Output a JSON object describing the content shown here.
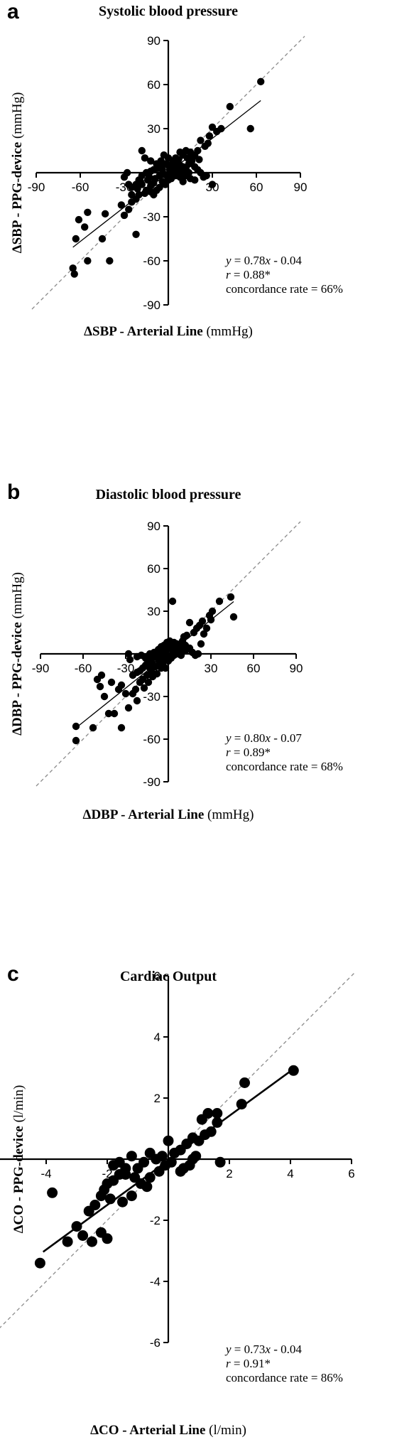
{
  "chart_data": [
    {
      "type": "scatter",
      "panel_label": "a",
      "title": "Systolic blood pressure",
      "xlabel_bold": "ΔSBP - Arterial Line",
      "xlabel_unit": " (mmHg)",
      "ylabel_bold": "ΔSBP - PPG-device",
      "ylabel_unit": " (mmHg)",
      "xlim": [
        -90,
        90
      ],
      "ylim": [
        -90,
        90
      ],
      "xticks": [
        -90,
        -60,
        -30,
        30,
        60,
        90
      ],
      "yticks": [
        90,
        60,
        30,
        -30,
        -60,
        -90
      ],
      "xtick_labels": [
        "-90",
        "-60",
        "-30",
        "30",
        "60",
        "90"
      ],
      "ytick_labels": [
        "90",
        "60",
        "30",
        "-30",
        "-60",
        "-90"
      ],
      "grid": false,
      "identity_line": {
        "from": [
          -90,
          -90
        ],
        "to": [
          90,
          90
        ],
        "style": "dashed"
      },
      "regression_line": {
        "slope": 0.78,
        "intercept": -0.04,
        "x_range": [
          -65,
          63
        ]
      },
      "stats": {
        "eq_var": "y",
        "eq_rest": " = 0.78",
        "eq_var2": "x",
        "eq_tail": " - 0.04",
        "r_var": "r",
        "r_rest": " = 0.88*",
        "concordance": "concordance rate = 66%"
      },
      "points": [
        [
          63,
          62
        ],
        [
          42,
          45
        ],
        [
          56,
          30
        ],
        [
          36,
          30
        ],
        [
          33,
          28
        ],
        [
          30,
          31
        ],
        [
          28,
          25
        ],
        [
          22,
          22
        ],
        [
          25,
          18
        ],
        [
          27,
          20
        ],
        [
          20,
          15
        ],
        [
          18,
          12
        ],
        [
          15,
          14
        ],
        [
          12,
          15
        ],
        [
          10,
          12
        ],
        [
          8,
          14
        ],
        [
          5,
          10
        ],
        [
          3,
          8
        ],
        [
          0,
          5
        ],
        [
          -2,
          6
        ],
        [
          -5,
          4
        ],
        [
          -8,
          3
        ],
        [
          -10,
          2
        ],
        [
          -12,
          1
        ],
        [
          -15,
          0
        ],
        [
          -18,
          -2
        ],
        [
          -20,
          -5
        ],
        [
          -22,
          -8
        ],
        [
          -25,
          -10
        ],
        [
          -28,
          0
        ],
        [
          -18,
          15
        ],
        [
          -16,
          10
        ],
        [
          -12,
          8
        ],
        [
          -8,
          6
        ],
        [
          -5,
          8
        ],
        [
          -3,
          12
        ],
        [
          0,
          10
        ],
        [
          2,
          3
        ],
        [
          4,
          1
        ],
        [
          6,
          2
        ],
        [
          8,
          5
        ],
        [
          10,
          4
        ],
        [
          12,
          3
        ],
        [
          14,
          6
        ],
        [
          16,
          8
        ],
        [
          18,
          4
        ],
        [
          20,
          2
        ],
        [
          22,
          0
        ],
        [
          24,
          -3
        ],
        [
          26,
          -2
        ],
        [
          30,
          -8
        ],
        [
          18,
          -5
        ],
        [
          15,
          -4
        ],
        [
          12,
          -2
        ],
        [
          10,
          -6
        ],
        [
          8,
          -3
        ],
        [
          5,
          -2
        ],
        [
          2,
          -4
        ],
        [
          0,
          -5
        ],
        [
          -2,
          -8
        ],
        [
          -4,
          -6
        ],
        [
          -6,
          -10
        ],
        [
          -8,
          -12
        ],
        [
          -10,
          -7
        ],
        [
          -12,
          -9
        ],
        [
          -14,
          -5
        ],
        [
          -16,
          -14
        ],
        [
          -20,
          -15
        ],
        [
          -22,
          -18
        ],
        [
          -25,
          -20
        ],
        [
          -27,
          -25
        ],
        [
          -30,
          -29
        ],
        [
          -32,
          -22
        ],
        [
          -18,
          -8
        ],
        [
          -15,
          -12
        ],
        [
          -12,
          -13
        ],
        [
          -10,
          -15
        ],
        [
          -6,
          -2
        ],
        [
          -3,
          -1
        ],
        [
          1,
          0
        ],
        [
          3,
          -1
        ],
        [
          6,
          -1
        ],
        [
          9,
          0
        ],
        [
          11,
          1
        ],
        [
          14,
          0
        ],
        [
          -22,
          -42
        ],
        [
          -43,
          -28
        ],
        [
          -55,
          -27
        ],
        [
          -57,
          -37
        ],
        [
          -61,
          -32
        ],
        [
          -63,
          -45
        ],
        [
          -45,
          -45
        ],
        [
          -55,
          -60
        ],
        [
          -40,
          -60
        ],
        [
          -65,
          -65
        ],
        [
          -64,
          -69
        ],
        [
          -25,
          -15
        ],
        [
          -27,
          -8
        ],
        [
          -30,
          -3
        ],
        [
          -21,
          -11
        ],
        [
          -19,
          -6
        ],
        [
          -7,
          3
        ],
        [
          -4,
          2
        ],
        [
          4,
          6
        ],
        [
          7,
          9
        ],
        [
          13,
          10
        ],
        [
          17,
          11
        ],
        [
          21,
          9
        ],
        [
          -1,
          -2
        ],
        [
          1,
          2
        ],
        [
          -13,
          -3
        ],
        [
          -9,
          -4
        ]
      ]
    },
    {
      "type": "scatter",
      "panel_label": "b",
      "title": "Diastolic blood pressure",
      "xlabel_bold": "ΔDBP - Arterial Line",
      "xlabel_unit": " (mmHg)",
      "ylabel_bold": "ΔDBP - PPG-device",
      "ylabel_unit": " (mmHg)",
      "xlim": [
        -90,
        90
      ],
      "ylim": [
        -90,
        90
      ],
      "xticks": [
        -90,
        -60,
        -30,
        30,
        60,
        90
      ],
      "yticks": [
        90,
        60,
        30,
        -30,
        -60,
        -90
      ],
      "xtick_labels": [
        "-90",
        "-60",
        "-30",
        "30",
        "60",
        "90"
      ],
      "ytick_labels": [
        "90",
        "60",
        "30",
        "-30",
        "-60",
        "-90"
      ],
      "grid": false,
      "identity_line": {
        "from": [
          -90,
          -90
        ],
        "to": [
          90,
          90
        ],
        "style": "dashed"
      },
      "regression_line": {
        "slope": 0.8,
        "intercept": -0.07,
        "x_range": [
          -65,
          46
        ]
      },
      "stats": {
        "eq_var": "y",
        "eq_rest": " = 0.80",
        "eq_var2": "x",
        "eq_tail": " - 0.07",
        "r_var": "r",
        "r_rest": " = 0.89*",
        "concordance": "concordance rate = 68%"
      },
      "points": [
        [
          44,
          40
        ],
        [
          46,
          26
        ],
        [
          36,
          37
        ],
        [
          31,
          30
        ],
        [
          29,
          27
        ],
        [
          24,
          23
        ],
        [
          22,
          20
        ],
        [
          20,
          18
        ],
        [
          18,
          15
        ],
        [
          15,
          22
        ],
        [
          13,
          13
        ],
        [
          11,
          12
        ],
        [
          10,
          9
        ],
        [
          8,
          6
        ],
        [
          6,
          7
        ],
        [
          4,
          8
        ],
        [
          3,
          37
        ],
        [
          2,
          5
        ],
        [
          0,
          4
        ],
        [
          -2,
          3
        ],
        [
          -4,
          2
        ],
        [
          -6,
          1
        ],
        [
          -8,
          0
        ],
        [
          -10,
          -2
        ],
        [
          -12,
          -4
        ],
        [
          -14,
          -6
        ],
        [
          -16,
          -8
        ],
        [
          -18,
          -10
        ],
        [
          -20,
          -12
        ],
        [
          -22,
          -13
        ],
        [
          -25,
          -15
        ],
        [
          -27,
          -4
        ],
        [
          -28,
          0
        ],
        [
          -22,
          -2
        ],
        [
          -19,
          -1
        ],
        [
          -16,
          -3
        ],
        [
          -13,
          0
        ],
        [
          -10,
          1
        ],
        [
          -7,
          3
        ],
        [
          -5,
          5
        ],
        [
          -3,
          6
        ],
        [
          -1,
          8
        ],
        [
          1,
          9
        ],
        [
          3,
          2
        ],
        [
          5,
          1
        ],
        [
          7,
          0
        ],
        [
          9,
          -1
        ],
        [
          11,
          2
        ],
        [
          13,
          3
        ],
        [
          15,
          4
        ],
        [
          17,
          1
        ],
        [
          19,
          -1
        ],
        [
          21,
          0
        ],
        [
          23,
          7
        ],
        [
          25,
          14
        ],
        [
          27,
          18
        ],
        [
          30,
          24
        ],
        [
          -30,
          -28
        ],
        [
          -33,
          -22
        ],
        [
          -18,
          -18
        ],
        [
          -15,
          -15
        ],
        [
          -12,
          -12
        ],
        [
          -9,
          -9
        ],
        [
          -6,
          -6
        ],
        [
          -3,
          -3
        ],
        [
          -1,
          -1
        ],
        [
          1,
          -2
        ],
        [
          -5,
          -10
        ],
        [
          -8,
          -14
        ],
        [
          -11,
          -16
        ],
        [
          -14,
          -20
        ],
        [
          -17,
          -24
        ],
        [
          -20,
          -20
        ],
        [
          -23,
          -25
        ],
        [
          -25,
          -28
        ],
        [
          -35,
          -25
        ],
        [
          -38,
          -42
        ],
        [
          -42,
          -42
        ],
        [
          -45,
          -30
        ],
        [
          -40,
          -20
        ],
        [
          -48,
          -23
        ],
        [
          -50,
          -18
        ],
        [
          -53,
          -52
        ],
        [
          -47,
          -15
        ],
        [
          -33,
          -52
        ],
        [
          -22,
          -33
        ],
        [
          -28,
          -38
        ],
        [
          -65,
          -51
        ],
        [
          -65,
          -61
        ],
        [
          -2,
          -10
        ],
        [
          -4,
          -7
        ],
        [
          0,
          -5
        ],
        [
          2,
          -3
        ],
        [
          4,
          -1
        ],
        [
          6,
          3
        ],
        [
          8,
          2
        ],
        [
          10,
          4
        ],
        [
          12,
          6
        ],
        [
          -7,
          -4
        ],
        [
          -11,
          -7
        ],
        [
          -13,
          -10
        ],
        [
          -9,
          -2
        ],
        [
          -6,
          -1
        ]
      ]
    },
    {
      "type": "scatter",
      "panel_label": "c",
      "title": "Cardiac Output",
      "xlabel_bold": "ΔCO - Arterial Line",
      "xlabel_unit": " (l/min)",
      "ylabel_bold": "ΔCO - PPG-device",
      "ylabel_unit": " (l/min)",
      "xlim": [
        -6,
        6
      ],
      "ylim": [
        -6,
        6
      ],
      "xticks": [
        -6,
        -4,
        -2,
        2,
        4,
        6
      ],
      "yticks": [
        6,
        4,
        2,
        -2,
        -4,
        -6
      ],
      "xtick_labels": [
        "-6",
        "-4",
        "-2",
        "2",
        "4",
        "6"
      ],
      "ytick_labels": [
        "6",
        "4",
        "2",
        "-2",
        "-4",
        "-6"
      ],
      "grid": false,
      "identity_line": {
        "from": [
          -6,
          -6
        ],
        "to": [
          6,
          6
        ],
        "style": "dashed"
      },
      "regression_line": {
        "slope": 0.73,
        "intercept": -0.04,
        "x_range": [
          -4.1,
          4.1
        ]
      },
      "stats": {
        "eq_var": "y",
        "eq_rest": " = 0.73",
        "eq_var2": "x",
        "eq_tail": " - 0.04",
        "r_var": "r",
        "r_rest": " = 0.91*",
        "concordance": "concordance rate = 86%"
      },
      "points": [
        [
          4.1,
          2.9
        ],
        [
          2.5,
          2.5
        ],
        [
          2.4,
          1.8
        ],
        [
          1.6,
          1.5
        ],
        [
          1.3,
          1.5
        ],
        [
          1.1,
          1.3
        ],
        [
          1.7,
          -0.1
        ],
        [
          1.2,
          0.8
        ],
        [
          1.0,
          0.6
        ],
        [
          0.8,
          0.7
        ],
        [
          0.6,
          0.5
        ],
        [
          0.4,
          0.3
        ],
        [
          0.2,
          0.2
        ],
        [
          0.0,
          0.6
        ],
        [
          -0.2,
          0.1
        ],
        [
          -0.4,
          0.0
        ],
        [
          -0.6,
          0.2
        ],
        [
          -0.8,
          -0.1
        ],
        [
          -1.0,
          -0.3
        ],
        [
          -1.2,
          0.1
        ],
        [
          -1.4,
          -0.3
        ],
        [
          -1.6,
          -0.5
        ],
        [
          -1.8,
          -0.7
        ],
        [
          -2.0,
          -0.8
        ],
        [
          -2.2,
          -1.2
        ],
        [
          -2.4,
          -1.5
        ],
        [
          -2.6,
          -1.7
        ],
        [
          -2.8,
          -2.5
        ],
        [
          -3.0,
          -2.2
        ],
        [
          -3.3,
          -2.7
        ],
        [
          -2.0,
          -2.6
        ],
        [
          -2.2,
          -2.4
        ],
        [
          -2.5,
          -2.7
        ],
        [
          -3.8,
          -1.1
        ],
        [
          -4.2,
          -3.4
        ],
        [
          -1.5,
          -1.4
        ],
        [
          -1.2,
          -1.2
        ],
        [
          -0.9,
          -0.8
        ],
        [
          -0.6,
          -0.6
        ],
        [
          -0.3,
          -0.4
        ],
        [
          0.1,
          -0.1
        ],
        [
          0.4,
          -0.4
        ],
        [
          0.7,
          -0.2
        ],
        [
          0.9,
          0.1
        ],
        [
          1.4,
          0.9
        ],
        [
          1.6,
          1.2
        ],
        [
          -1.8,
          -0.2
        ],
        [
          -1.6,
          -0.1
        ],
        [
          -1.4,
          -0.5
        ],
        [
          -2.1,
          -1.0
        ],
        [
          -1.9,
          -1.3
        ],
        [
          -1.1,
          -0.6
        ],
        [
          -0.7,
          -0.9
        ],
        [
          0.5,
          -0.3
        ],
        [
          0.8,
          0.0
        ],
        [
          -0.1,
          -0.2
        ]
      ]
    }
  ]
}
